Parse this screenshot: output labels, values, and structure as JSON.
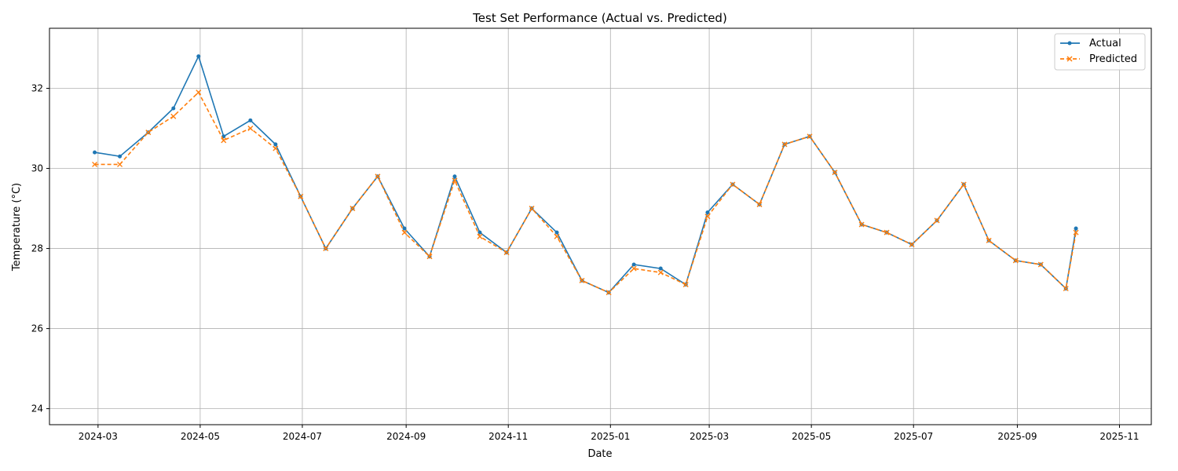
{
  "chart_data": {
    "type": "line",
    "title": "Test Set Performance (Actual vs. Predicted)",
    "xlabel": "Date",
    "ylabel": "Temperature (°C)",
    "xlim": [
      "2024-02-01",
      "2025-11-20"
    ],
    "ylim": [
      23.6,
      33.5
    ],
    "x_ticks": [
      "2024-03",
      "2024-05",
      "2024-07",
      "2024-09",
      "2024-11",
      "2025-01",
      "2025-03",
      "2025-05",
      "2025-07",
      "2025-09",
      "2025-11"
    ],
    "y_ticks": [
      24,
      26,
      28,
      30,
      32
    ],
    "grid": true,
    "legend_position": "top-right",
    "x": [
      "2024-02-28",
      "2024-03-14",
      "2024-03-31",
      "2024-04-15",
      "2024-04-30",
      "2024-05-15",
      "2024-05-31",
      "2024-06-15",
      "2024-06-30",
      "2024-07-15",
      "2024-07-31",
      "2024-08-15",
      "2024-08-31",
      "2024-09-15",
      "2024-09-30",
      "2024-10-15",
      "2024-10-31",
      "2024-11-15",
      "2024-11-30",
      "2024-12-15",
      "2024-12-31",
      "2025-01-15",
      "2025-01-31",
      "2025-02-15",
      "2025-02-28",
      "2025-03-15",
      "2025-03-31",
      "2025-04-15",
      "2025-04-30",
      "2025-05-15",
      "2025-05-31",
      "2025-06-15",
      "2025-06-30",
      "2025-07-15",
      "2025-07-31",
      "2025-08-15",
      "2025-08-31",
      "2025-09-15",
      "2025-09-30",
      "2025-10-06"
    ],
    "series": [
      {
        "name": "Actual",
        "color": "#1f77b4",
        "marker": "dot",
        "values": [
          30.4,
          30.3,
          30.9,
          31.5,
          32.8,
          30.8,
          31.2,
          30.6,
          29.3,
          28.0,
          29.0,
          29.8,
          28.5,
          27.8,
          29.8,
          28.4,
          27.9,
          29.0,
          28.4,
          27.2,
          26.9,
          27.6,
          27.5,
          27.1,
          28.9,
          29.6,
          29.1,
          30.6,
          30.8,
          29.9,
          28.6,
          28.4,
          28.1,
          28.7,
          29.6,
          28.2,
          27.7,
          27.6,
          27.0,
          28.5
        ]
      },
      {
        "name": "Predicted",
        "color": "#ff7f0e",
        "marker": "x",
        "values": [
          30.1,
          30.1,
          30.9,
          31.3,
          31.9,
          30.7,
          31.0,
          30.5,
          29.3,
          28.0,
          29.0,
          29.8,
          28.4,
          27.8,
          29.7,
          28.3,
          27.9,
          29.0,
          28.3,
          27.2,
          26.9,
          27.5,
          27.4,
          27.1,
          28.8,
          29.6,
          29.1,
          30.6,
          30.8,
          29.9,
          28.6,
          28.4,
          28.1,
          28.7,
          29.6,
          28.2,
          27.7,
          27.6,
          27.0,
          28.4
        ]
      }
    ]
  }
}
